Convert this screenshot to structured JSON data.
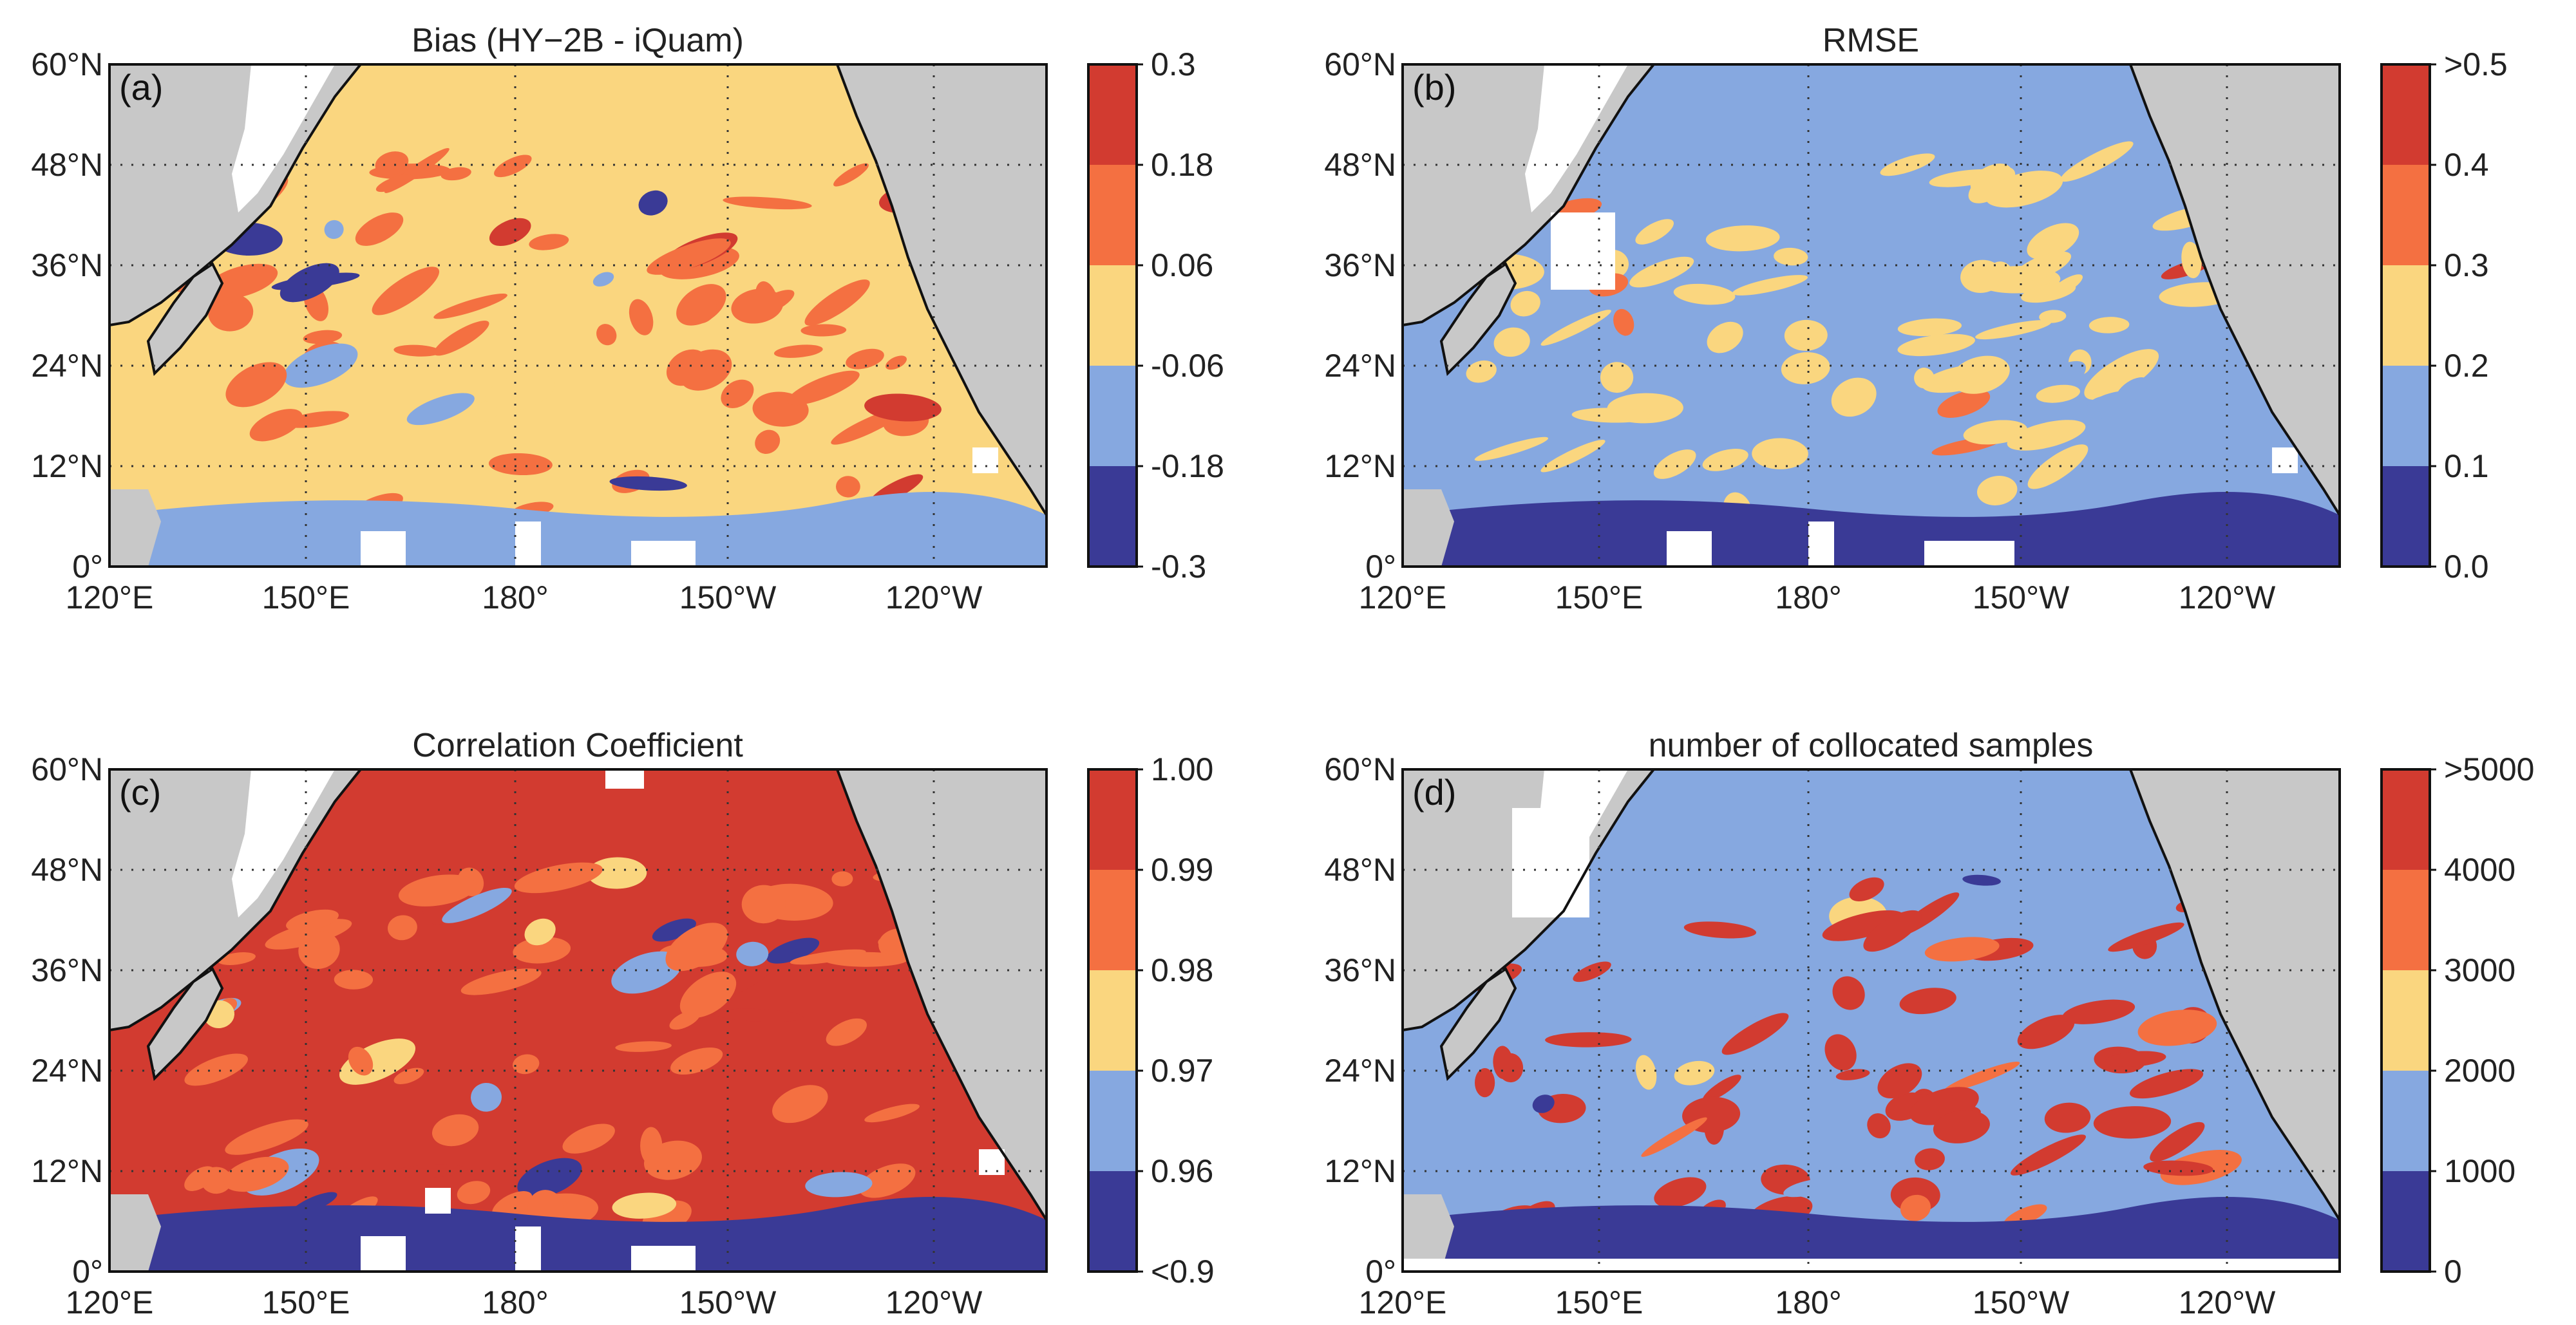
{
  "panels": [
    {
      "letter": "(a)",
      "title": "Bias (HY−2B - iQuam)",
      "colorbar_labels": [
        "0.3",
        "0.18",
        "0.06",
        "-0.06",
        "-0.18",
        "-0.3"
      ],
      "colors": [
        "#d23b30",
        "#f47041",
        "#fad67f",
        "#86a8e0",
        "#3a3a96"
      ],
      "dominant_index": 2,
      "patch_index": 1
    },
    {
      "letter": "(b)",
      "title": "RMSE",
      "colorbar_labels": [
        ">0.5",
        "0.4",
        "0.3",
        "0.2",
        "0.1",
        "0.0"
      ],
      "colors": [
        "#d23b30",
        "#f47041",
        "#fad67f",
        "#86a8e0",
        "#3a3a96"
      ],
      "dominant_index": 3,
      "patch_index": 2
    },
    {
      "letter": "(c)",
      "title": "Correlation Coefficient",
      "colorbar_labels": [
        "1.00",
        "0.99",
        "0.98",
        "0.97",
        "0.96",
        "<0.9"
      ],
      "colors": [
        "#d23b30",
        "#f47041",
        "#fad67f",
        "#86a8e0",
        "#3a3a96"
      ],
      "dominant_index": 0,
      "patch_index": 1
    },
    {
      "letter": "(d)",
      "title": "number of collocated samples",
      "colorbar_labels": [
        ">5000",
        "4000",
        "3000",
        "2000",
        "1000",
        "0"
      ],
      "colors": [
        "#d23b30",
        "#f47041",
        "#fad67f",
        "#86a8e0",
        "#3a3a96"
      ],
      "dominant_index": 3,
      "patch_index": 0
    }
  ],
  "lat_labels": [
    "60°N",
    "48°N",
    "36°N",
    "24°N",
    "12°N",
    "0°"
  ],
  "lon_labels": [
    "120°E",
    "150°E",
    "180°",
    "150°W",
    "120°W"
  ],
  "land_color": "#c8c8c8"
}
